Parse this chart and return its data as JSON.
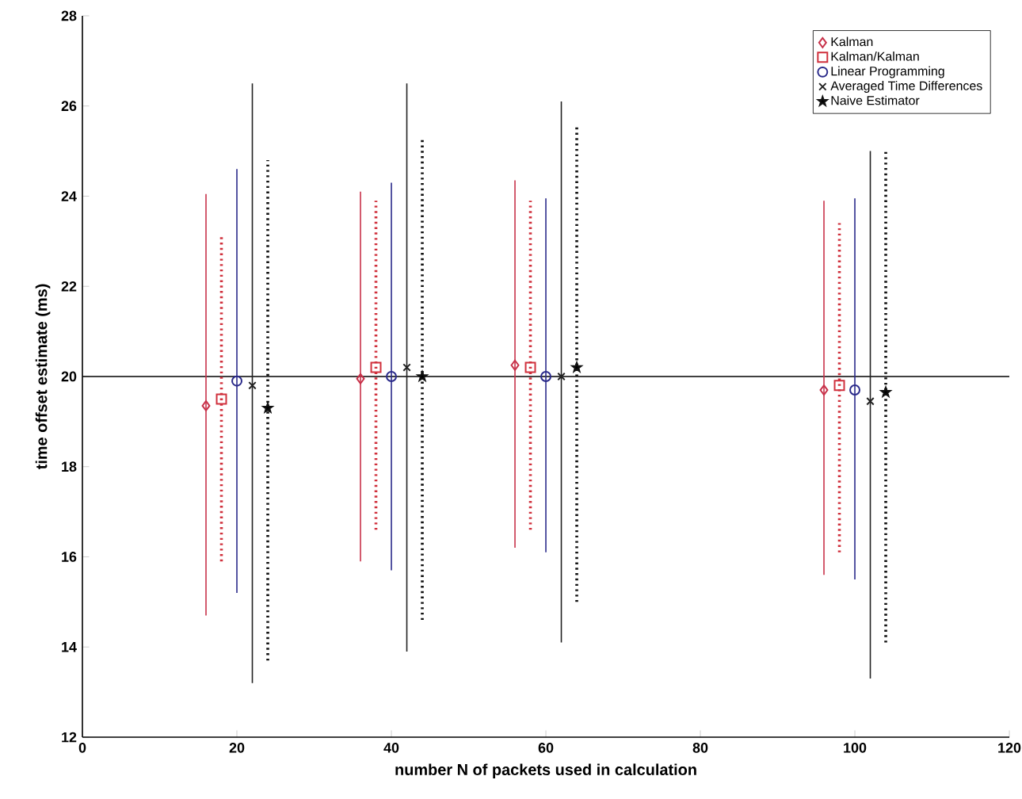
{
  "chart_data": {
    "type": "scatter",
    "xlabel": "number N of packets used in calculation",
    "ylabel": "time offset estimate (ms)",
    "xlim": [
      0,
      120
    ],
    "xticks": [
      0,
      20,
      40,
      60,
      80,
      100,
      120
    ],
    "ylim": [
      12,
      28
    ],
    "yticks": [
      12,
      14,
      16,
      18,
      20,
      22,
      24,
      26,
      28
    ],
    "legend": "top right",
    "grid": false,
    "ref_lines": [
      {
        "axis": "y",
        "value": 20,
        "color": "#000000"
      }
    ],
    "series": [
      {
        "name": "Kalman",
        "color": "#c8324a",
        "marker": "diamond",
        "line_style": "solid",
        "x": [
          16,
          36,
          56,
          96
        ],
        "values": [
          19.35,
          19.95,
          20.25,
          19.7
        ],
        "errors": [
          [
            14.7,
            24.05
          ],
          [
            15.9,
            24.1
          ],
          [
            16.2,
            24.35
          ],
          [
            15.6,
            23.9
          ]
        ]
      },
      {
        "name": "Kalman/Kalman",
        "color": "#d0303c",
        "marker": "square",
        "line_style": "dotted",
        "x": [
          18,
          38,
          58,
          98
        ],
        "values": [
          19.5,
          20.2,
          20.2,
          19.8
        ],
        "errors": [
          [
            15.9,
            23.15
          ],
          [
            16.6,
            23.9
          ],
          [
            16.6,
            23.9
          ],
          [
            16.1,
            23.4
          ]
        ]
      },
      {
        "name": "Linear Programming",
        "color": "#2a2a8a",
        "marker": "circle",
        "line_style": "solid",
        "x": [
          20,
          40,
          60,
          100
        ],
        "values": [
          19.9,
          20.0,
          20.0,
          19.7
        ],
        "errors": [
          [
            15.2,
            24.6
          ],
          [
            15.7,
            24.3
          ],
          [
            16.1,
            23.95
          ],
          [
            15.5,
            23.95
          ]
        ]
      },
      {
        "name": "Averaged Time Differences",
        "color": "#222222",
        "marker": "cross",
        "line_style": "solid",
        "x": [
          22,
          42,
          62,
          102
        ],
        "values": [
          19.8,
          20.2,
          20.0,
          19.45
        ],
        "errors": [
          [
            13.2,
            26.5
          ],
          [
            13.9,
            26.5
          ],
          [
            14.1,
            26.1
          ],
          [
            13.3,
            25.0
          ]
        ]
      },
      {
        "name": "Naive Estimator",
        "color": "#111111",
        "marker": "star",
        "line_style": "dotted",
        "x": [
          24,
          44,
          64,
          104
        ],
        "values": [
          19.3,
          20.0,
          20.2,
          19.65
        ],
        "errors": [
          [
            13.7,
            24.8
          ],
          [
            14.6,
            25.3
          ],
          [
            15.0,
            25.6
          ],
          [
            14.1,
            25.0
          ]
        ]
      }
    ]
  }
}
